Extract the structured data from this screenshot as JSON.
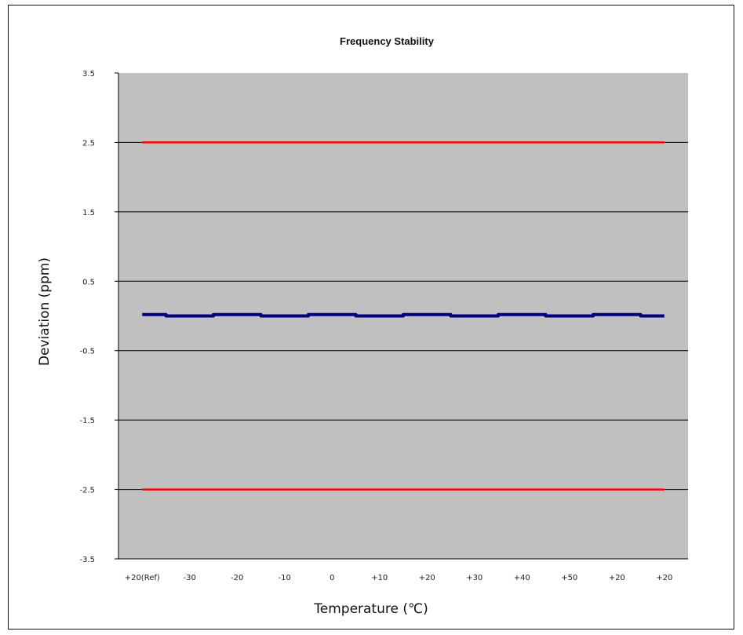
{
  "chart_data": {
    "type": "line",
    "title": "Frequency Stability",
    "xlabel": "Temperature (℃)",
    "ylabel": "Deviation (ppm)",
    "ylim": [
      -3.5,
      3.5
    ],
    "yticks": [
      "3.5",
      "2.5",
      "1.5",
      "0.5",
      "-0.5",
      "-1.5",
      "-2.5",
      "-3.5"
    ],
    "ytick_values": [
      3.5,
      2.5,
      1.5,
      0.5,
      -0.5,
      -1.5,
      -2.5,
      -3.5
    ],
    "categories": [
      "+20(Ref)",
      "-30",
      "-20",
      "-10",
      "0",
      "+10",
      "+20",
      "+30",
      "+40",
      "+50",
      "+20",
      "+20"
    ],
    "grid": true,
    "background": "#c0c0c0",
    "series": [
      {
        "values": [
          0.02,
          0.0,
          0.02,
          0.0,
          0.02,
          0.0,
          0.02,
          0.0,
          0.02,
          0.0,
          0.02,
          0.0
        ],
        "color": "#000080"
      },
      {
        "values": [
          2.5,
          2.5,
          2.5,
          2.5,
          2.5,
          2.5,
          2.5,
          2.5,
          2.5,
          2.5,
          2.5,
          2.5
        ],
        "color": "#ff0000"
      },
      {
        "values": [
          -2.5,
          -2.5,
          -2.5,
          -2.5,
          -2.5,
          -2.5,
          -2.5,
          -2.5,
          -2.5,
          -2.5,
          -2.5,
          -2.5
        ],
        "color": "#ff0000"
      }
    ]
  }
}
